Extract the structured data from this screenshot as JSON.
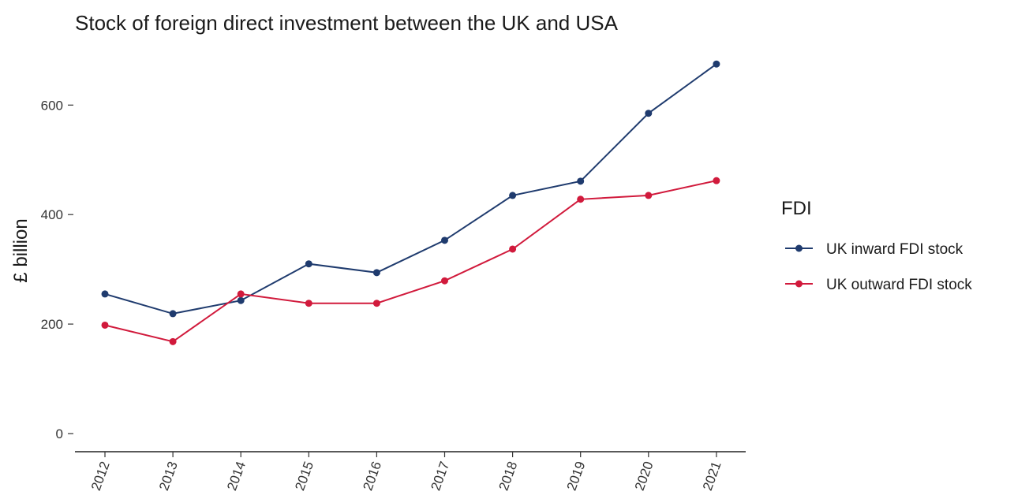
{
  "chart_data": {
    "type": "line",
    "title": "Stock of foreign direct investment between the UK and USA",
    "xlabel": "",
    "ylabel": "£ billion",
    "x": [
      "2012",
      "2013",
      "2014",
      "2015",
      "2016",
      "2017",
      "2018",
      "2019",
      "2020",
      "2021"
    ],
    "y_ticks": [
      "0",
      "200",
      "400",
      "600"
    ],
    "ylim": [
      0,
      685
    ],
    "grid": false,
    "legend": {
      "title": "FDI",
      "position": "right"
    },
    "series": [
      {
        "name": "UK inward FDI stock",
        "color": "#1f3b6e",
        "values": [
          255,
          219,
          243,
          310,
          294,
          353,
          435,
          461,
          585,
          675
        ]
      },
      {
        "name": "UK outward FDI stock",
        "color": "#d11a3c",
        "values": [
          198,
          168,
          255,
          238,
          238,
          279,
          337,
          428,
          435,
          462
        ]
      }
    ]
  }
}
